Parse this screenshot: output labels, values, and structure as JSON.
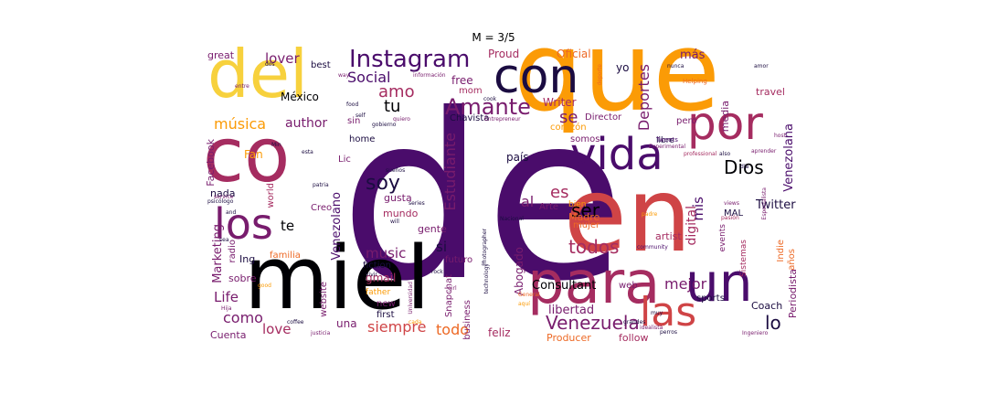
{
  "chart_data": {
    "type": "wordcloud",
    "title": "M = 3/5",
    "colors": [
      "#000004",
      "#1b0c41",
      "#4a0c6b",
      "#781c6d",
      "#a52c60",
      "#cf4446",
      "#ed6925",
      "#fb9b06",
      "#f7d13d",
      "#fcffa4"
    ],
    "words": [
      {
        "text": "de",
        "size": 250,
        "color": "#4a0c6b"
      },
      {
        "text": "que",
        "size": 120,
        "color": "#fb9b06"
      },
      {
        "text": "en",
        "size": 112,
        "color": "#cf4446"
      },
      {
        "text": "miel",
        "size": 95,
        "color": "#000004"
      },
      {
        "text": "co",
        "size": 82,
        "color": "#a52c60"
      },
      {
        "text": "del",
        "size": 72,
        "color": "#f7d13d"
      },
      {
        "text": "para",
        "size": 64,
        "color": "#a52c60"
      },
      {
        "text": "un",
        "size": 58,
        "color": "#4a0c6b"
      },
      {
        "text": "con",
        "size": 52,
        "color": "#1b0c41"
      },
      {
        "text": "por",
        "size": 50,
        "color": "#a52c60"
      },
      {
        "text": "vida",
        "size": 48,
        "color": "#4a0c6b"
      },
      {
        "text": "los",
        "size": 46,
        "color": "#781c6d"
      },
      {
        "text": "las",
        "size": 44,
        "color": "#cf4446"
      },
      {
        "text": "Instagram",
        "size": 26,
        "color": "#4a0c6b"
      },
      {
        "text": "Amante",
        "size": 24,
        "color": "#781c6d"
      },
      {
        "text": "Venezuela",
        "size": 20,
        "color": "#781c6d"
      },
      {
        "text": "soy",
        "size": 22,
        "color": "#1b0c41"
      },
      {
        "text": "Dios",
        "size": 20,
        "color": "#000004"
      },
      {
        "text": "todos",
        "size": 20,
        "color": "#a52c60"
      },
      {
        "text": "ser",
        "size": 20,
        "color": "#000004"
      },
      {
        "text": "lo",
        "size": 20,
        "color": "#1b0c41"
      },
      {
        "text": "amo",
        "size": 18,
        "color": "#a52c60"
      },
      {
        "text": "tu",
        "size": 18,
        "color": "#000004"
      },
      {
        "text": "se",
        "size": 18,
        "color": "#781c6d"
      },
      {
        "text": "es",
        "size": 18,
        "color": "#a52c60"
      },
      {
        "text": "al",
        "size": 16,
        "color": "#781c6d"
      },
      {
        "text": "Social",
        "size": 16,
        "color": "#4a0c6b"
      },
      {
        "text": "mejor",
        "size": 16,
        "color": "#781c6d"
      },
      {
        "text": "Deportes",
        "size": 16,
        "color": "#781c6d"
      },
      {
        "text": "Estudiante",
        "size": 16,
        "color": "#781c6d"
      },
      {
        "text": "todo",
        "size": 16,
        "color": "#ed6925"
      },
      {
        "text": "siempre",
        "size": 16,
        "color": "#cf4446"
      },
      {
        "text": "música",
        "size": 16,
        "color": "#fb9b06"
      },
      {
        "text": "como",
        "size": 16,
        "color": "#781c6d"
      },
      {
        "text": "lover",
        "size": 15,
        "color": "#781c6d"
      },
      {
        "text": "author",
        "size": 14,
        "color": "#781c6d"
      },
      {
        "text": "music",
        "size": 15,
        "color": "#781c6d"
      },
      {
        "text": "Life",
        "size": 15,
        "color": "#781c6d"
      },
      {
        "text": "love",
        "size": 15,
        "color": "#a52c60"
      },
      {
        "text": "mis",
        "size": 15,
        "color": "#4a0c6b"
      },
      {
        "text": "si",
        "size": 15,
        "color": "#1b0c41"
      },
      {
        "text": "te",
        "size": 15,
        "color": "#000004"
      },
      {
        "text": "Consultant",
        "size": 13,
        "color": "#000004"
      },
      {
        "text": "Twitter",
        "size": 13,
        "color": "#1b0c41"
      },
      {
        "text": "Venezolana",
        "size": 13,
        "color": "#4a0c6b"
      },
      {
        "text": "Venezolano",
        "size": 13,
        "color": "#4a0c6b"
      },
      {
        "text": "digital",
        "size": 14,
        "color": "#a52c60"
      },
      {
        "text": "más",
        "size": 13,
        "color": "#781c6d"
      },
      {
        "text": "libertad",
        "size": 13,
        "color": "#781c6d"
      },
      {
        "text": "Marketing",
        "size": 13,
        "color": "#781c6d"
      },
      {
        "text": "Writer",
        "size": 12,
        "color": "#a52c60"
      },
      {
        "text": "Oficial",
        "size": 12,
        "color": "#ed6925"
      },
      {
        "text": "Proud",
        "size": 12,
        "color": "#a52c60"
      },
      {
        "text": "free",
        "size": 12,
        "color": "#781c6d"
      },
      {
        "text": "México",
        "size": 12,
        "color": "#000004"
      },
      {
        "text": "yo",
        "size": 12,
        "color": "#1b0c41"
      },
      {
        "text": "país",
        "size": 12,
        "color": "#1b0c41"
      },
      {
        "text": "Fan",
        "size": 12,
        "color": "#fb9b06"
      },
      {
        "text": "Facebook",
        "size": 11,
        "color": "#781c6d"
      },
      {
        "text": "Abogado",
        "size": 12,
        "color": "#781c6d"
      },
      {
        "text": "gmail",
        "size": 12,
        "color": "#a52c60"
      },
      {
        "text": "una",
        "size": 12,
        "color": "#781c6d"
      },
      {
        "text": "feliz",
        "size": 12,
        "color": "#a52c60"
      },
      {
        "text": "Producer",
        "size": 11,
        "color": "#ed6925"
      },
      {
        "text": "follow",
        "size": 11,
        "color": "#a52c60"
      },
      {
        "text": "Coach",
        "size": 11,
        "color": "#1b0c41"
      },
      {
        "text": "Periodista",
        "size": 11,
        "color": "#781c6d"
      },
      {
        "text": "Cuenta",
        "size": 11,
        "color": "#781c6d"
      },
      {
        "text": "sobre",
        "size": 11,
        "color": "#781c6d"
      },
      {
        "text": "Ing",
        "size": 11,
        "color": "#1b0c41"
      },
      {
        "text": "nada",
        "size": 11,
        "color": "#1b0c41"
      },
      {
        "text": "gente",
        "size": 11,
        "color": "#781c6d"
      },
      {
        "text": "mundo",
        "size": 11,
        "color": "#a52c60"
      },
      {
        "text": "gusta",
        "size": 11,
        "color": "#781c6d"
      },
      {
        "text": "Madre",
        "size": 11,
        "color": "#ed6925"
      },
      {
        "text": "artist",
        "size": 11,
        "color": "#a52c60"
      },
      {
        "text": "travel",
        "size": 11,
        "color": "#a52c60"
      },
      {
        "text": "media",
        "size": 11,
        "color": "#781c6d"
      },
      {
        "text": "great",
        "size": 11,
        "color": "#781c6d"
      },
      {
        "text": "best",
        "size": 10,
        "color": "#1b0c41"
      },
      {
        "text": "home",
        "size": 10,
        "color": "#1b0c41"
      },
      {
        "text": "Lic",
        "size": 10,
        "color": "#781c6d"
      },
      {
        "text": "mom",
        "size": 10,
        "color": "#a52c60"
      },
      {
        "text": "Chavista",
        "size": 10,
        "color": "#1b0c41"
      },
      {
        "text": "Director",
        "size": 10,
        "color": "#781c6d"
      },
      {
        "text": "somos",
        "size": 10,
        "color": "#781c6d"
      },
      {
        "text": "pero",
        "size": 10,
        "color": "#781c6d"
      },
      {
        "text": "corazón",
        "size": 10,
        "color": "#fb9b06"
      },
      {
        "text": "Creo",
        "size": 10,
        "color": "#781c6d"
      },
      {
        "text": "world",
        "size": 10,
        "color": "#a52c60"
      },
      {
        "text": "familia",
        "size": 10,
        "color": "#ed6925"
      },
      {
        "text": "radio",
        "size": 10,
        "color": "#781c6d"
      },
      {
        "text": "fiction",
        "size": 10,
        "color": "#1b0c41"
      },
      {
        "text": "business",
        "size": 10,
        "color": "#781c6d"
      },
      {
        "text": "Snapchat",
        "size": 10,
        "color": "#781c6d"
      },
      {
        "text": "website",
        "size": 10,
        "color": "#781c6d"
      },
      {
        "text": "new",
        "size": 10,
        "color": "#781c6d"
      },
      {
        "text": "first",
        "size": 10,
        "color": "#1b0c41"
      },
      {
        "text": "futuro",
        "size": 10,
        "color": "#781c6d"
      },
      {
        "text": "Arte",
        "size": 10,
        "color": "#781c6d"
      },
      {
        "text": "mujer",
        "size": 10,
        "color": "#ed6925"
      },
      {
        "text": "web",
        "size": 10,
        "color": "#781c6d"
      },
      {
        "text": "sports",
        "size": 10,
        "color": "#1b0c41"
      },
      {
        "text": "Indie",
        "size": 10,
        "color": "#ed6925"
      },
      {
        "text": "años",
        "size": 10,
        "color": "#ed6925"
      },
      {
        "text": "MAL",
        "size": 10,
        "color": "#1b0c41"
      },
      {
        "text": "events",
        "size": 9,
        "color": "#781c6d"
      },
      {
        "text": "Sistemas",
        "size": 9,
        "color": "#a52c60"
      },
      {
        "text": "libre",
        "size": 9,
        "color": "#1b0c41"
      },
      {
        "text": "sin",
        "size": 10,
        "color": "#781c6d"
      },
      {
        "text": "bien",
        "size": 9,
        "color": "#fb9b06"
      },
      {
        "text": "father",
        "size": 9,
        "color": "#fb9b06"
      },
      {
        "text": "Tweets",
        "size": 7,
        "color": "#4a0c6b"
      },
      {
        "text": "Helping",
        "size": 7,
        "color": "#ed6925"
      },
      {
        "text": "nunca",
        "size": 6,
        "color": "#1b0c41"
      },
      {
        "text": "amor",
        "size": 6,
        "color": "#1b0c41"
      },
      {
        "text": "deporte",
        "size": 6,
        "color": "#ed6925"
      },
      {
        "text": "información",
        "size": 6,
        "color": "#781c6d"
      },
      {
        "text": "Entrepreneur",
        "size": 6,
        "color": "#781c6d"
      },
      {
        "text": "Experimental",
        "size": 6,
        "color": "#781c6d"
      },
      {
        "text": "professional",
        "size": 6,
        "color": "#a52c60"
      },
      {
        "text": "aprender",
        "size": 6,
        "color": "#781c6d"
      },
      {
        "text": "host",
        "size": 6,
        "color": "#781c6d"
      },
      {
        "text": "also",
        "size": 6,
        "color": "#1b0c41"
      },
      {
        "text": "Especialista",
        "size": 6,
        "color": "#781c6d"
      },
      {
        "text": "pasión",
        "size": 6,
        "color": "#a52c60"
      },
      {
        "text": "padre",
        "size": 6,
        "color": "#fb9b06"
      },
      {
        "text": "community",
        "size": 6,
        "color": "#4a0c6b"
      },
      {
        "text": "Nacional",
        "size": 6,
        "color": "#1b0c41"
      },
      {
        "text": "General",
        "size": 6,
        "color": "#ed6925"
      },
      {
        "text": "Photographer",
        "size": 6,
        "color": "#1b0c41"
      },
      {
        "text": "technology",
        "size": 6,
        "color": "#1b0c41"
      },
      {
        "text": "grandes",
        "size": 6,
        "color": "#1b0c41"
      },
      {
        "text": "perros",
        "size": 6,
        "color": "#1b0c41"
      },
      {
        "text": "idealista",
        "size": 6,
        "color": "#781c6d"
      },
      {
        "text": "Ingeniero",
        "size": 6,
        "color": "#781c6d"
      },
      {
        "text": "justicia",
        "size": 6,
        "color": "#781c6d"
      },
      {
        "text": "coffee",
        "size": 6,
        "color": "#1b0c41"
      },
      {
        "text": "rock",
        "size": 6,
        "color": "#1b0c41"
      },
      {
        "text": "girl",
        "size": 6,
        "color": "#781c6d"
      },
      {
        "text": "vivir",
        "size": 6,
        "color": "#1b0c41"
      },
      {
        "text": "Universidad",
        "size": 6,
        "color": "#781c6d"
      },
      {
        "text": "will",
        "size": 6,
        "color": "#1b0c41"
      },
      {
        "text": "series",
        "size": 6,
        "color": "#1b0c41"
      },
      {
        "text": "sueños",
        "size": 6,
        "color": "#1b0c41"
      },
      {
        "text": "patria",
        "size": 6,
        "color": "#1b0c41"
      },
      {
        "text": "psicólogo",
        "size": 6,
        "color": "#1b0c41"
      },
      {
        "text": "service",
        "size": 6,
        "color": "#781c6d"
      },
      {
        "text": "esta",
        "size": 6,
        "color": "#1b0c41"
      },
      {
        "text": "Min",
        "size": 6,
        "color": "#1b0c41"
      },
      {
        "text": "gobierno",
        "size": 6,
        "color": "#1b0c41"
      },
      {
        "text": "quiero",
        "size": 6,
        "color": "#781c6d"
      },
      {
        "text": "cook",
        "size": 6,
        "color": "#1b0c41"
      },
      {
        "text": "food",
        "size": 6,
        "color": "#1b0c41"
      },
      {
        "text": "dos",
        "size": 6,
        "color": "#1b0c41"
      },
      {
        "text": "entre",
        "size": 6,
        "color": "#781c6d"
      },
      {
        "text": "way",
        "size": 6,
        "color": "#781c6d"
      },
      {
        "text": "self",
        "size": 6,
        "color": "#1b0c41"
      },
      {
        "text": "Hija",
        "size": 6,
        "color": "#781c6d"
      },
      {
        "text": "views",
        "size": 6,
        "color": "#781c6d"
      },
      {
        "text": "día",
        "size": 6,
        "color": "#1b0c41"
      },
      {
        "text": "muy",
        "size": 6,
        "color": "#1b0c41"
      },
      {
        "text": "aquí",
        "size": 6,
        "color": "#fb9b06"
      },
      {
        "text": "sea",
        "size": 6,
        "color": "#1b0c41"
      },
      {
        "text": "and",
        "size": 6,
        "color": "#1b0c41"
      },
      {
        "text": "good",
        "size": 6,
        "color": "#fb9b06"
      },
      {
        "text": "cada",
        "size": 6,
        "color": "#fb9b06"
      }
    ]
  }
}
